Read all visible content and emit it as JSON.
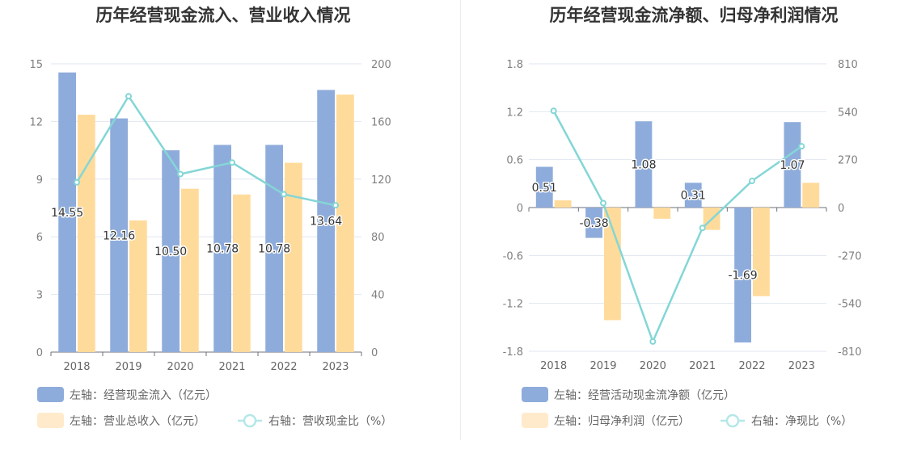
{
  "chart_data": [
    {
      "type": "bar",
      "title": "历年经营现金流入、营业收入情况",
      "categories": [
        "2018",
        "2019",
        "2020",
        "2021",
        "2022",
        "2023"
      ],
      "y_left": {
        "ticks": [
          "0",
          "3",
          "6",
          "9",
          "12",
          "15"
        ],
        "min": 0,
        "max": 15
      },
      "y_right": {
        "ticks": [
          "0",
          "40",
          "80",
          "120",
          "160",
          "200"
        ],
        "min": 0,
        "max": 200
      },
      "series": [
        {
          "name": "左轴：经营现金流入（亿元）",
          "type": "bar",
          "axis": "left",
          "color": "#8eacdb",
          "values": [
            14.55,
            12.16,
            10.5,
            10.78,
            10.78,
            13.64
          ],
          "labels": [
            "14.55",
            "12.16",
            "10.50",
            "10.78",
            "10.78",
            "13.64"
          ]
        },
        {
          "name": "左轴：营业总收入（亿元）",
          "type": "bar",
          "axis": "left",
          "color": "#ffdb9b",
          "values": [
            12.35,
            6.85,
            8.5,
            8.2,
            9.85,
            13.4
          ]
        },
        {
          "name": "右轴：营收现金比（%）",
          "type": "line",
          "axis": "right",
          "color": "#84d6d6",
          "values": [
            117.8,
            177.5,
            123.5,
            131.5,
            109.5,
            101.8
          ]
        }
      ],
      "grid": true,
      "legend_position": "bottom"
    },
    {
      "type": "bar",
      "title": "历年经营现金流净额、归母净利润情况",
      "categories": [
        "2018",
        "2019",
        "2020",
        "2021",
        "2022",
        "2023"
      ],
      "y_left": {
        "ticks": [
          "-1.8",
          "-1.2",
          "-0.6",
          "0",
          "0.6",
          "1.2",
          "1.8"
        ],
        "min": -1.8,
        "max": 1.8
      },
      "y_right": {
        "ticks": [
          "-810",
          "-540",
          "-270",
          "0",
          "270",
          "540",
          "810"
        ],
        "min": -810,
        "max": 810
      },
      "series": [
        {
          "name": "左轴：经营活动现金流净额（亿元）",
          "type": "bar",
          "axis": "left",
          "color": "#8eacdb",
          "values": [
            0.51,
            -0.38,
            1.08,
            0.31,
            -1.69,
            1.07
          ],
          "labels": [
            "0.51",
            "-0.38",
            "1.08",
            "0.31",
            "-1.69",
            "1.07"
          ]
        },
        {
          "name": "左轴：归母净利润（亿元）",
          "type": "bar",
          "axis": "left",
          "color": "#ffdb9b",
          "values": [
            0.09,
            -1.41,
            -0.14,
            -0.28,
            -1.11,
            0.31
          ]
        },
        {
          "name": "右轴：净现比（%）",
          "type": "line",
          "axis": "right",
          "color": "#84d6d6",
          "values": [
            545,
            25,
            -755,
            -115,
            150,
            345
          ]
        }
      ],
      "grid": true,
      "legend_position": "bottom"
    }
  ]
}
